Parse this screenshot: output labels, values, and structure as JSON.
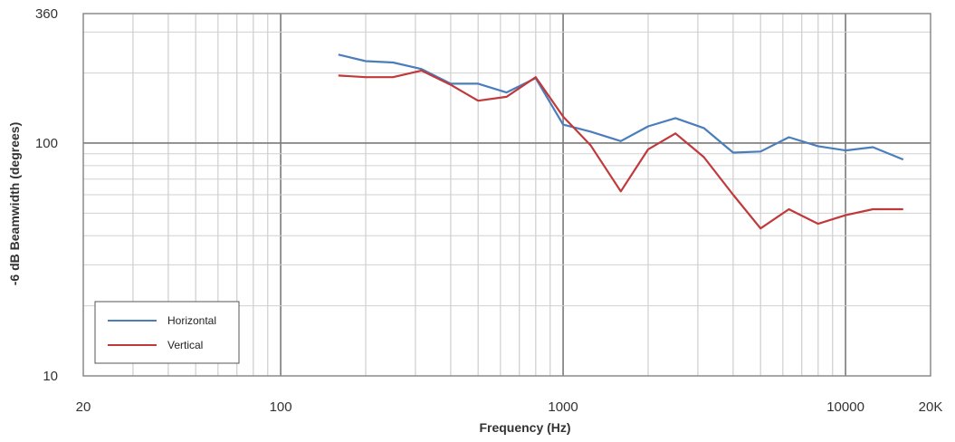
{
  "chart_data": {
    "type": "line",
    "xscale": "log",
    "yscale": "log",
    "xlabel": "Frequency (Hz)",
    "ylabel": "-6 dB Beamwidth (degrees)",
    "xlim": [
      20,
      20000
    ],
    "ylim": [
      10,
      360
    ],
    "x_tick_labels": [
      {
        "value": 20,
        "label": "20"
      },
      {
        "value": 100,
        "label": "100"
      },
      {
        "value": 1000,
        "label": "1000"
      },
      {
        "value": 10000,
        "label": "10000"
      },
      {
        "value": 20000,
        "label": "20K"
      }
    ],
    "y_tick_labels": [
      {
        "value": 10,
        "label": "10"
      },
      {
        "value": 100,
        "label": "100"
      },
      {
        "value": 360,
        "label": "360"
      }
    ],
    "grid": true,
    "legend_position": "bottom-left",
    "series": [
      {
        "name": "Horizontal",
        "color": "#4a7ebb",
        "x": [
          160,
          200,
          250,
          315,
          400,
          500,
          630,
          800,
          1000,
          1250,
          1600,
          2000,
          2500,
          3150,
          4000,
          5000,
          6300,
          8000,
          10000,
          12500,
          16000
        ],
        "y": [
          240,
          225,
          222,
          208,
          180,
          180,
          165,
          190,
          120,
          112,
          102,
          118,
          128,
          116,
          91,
          92,
          106,
          97,
          93,
          96,
          85
        ]
      },
      {
        "name": "Vertical",
        "color": "#c0393b",
        "x": [
          160,
          200,
          250,
          315,
          400,
          500,
          630,
          800,
          1000,
          1250,
          1600,
          2000,
          2500,
          3150,
          4000,
          5000,
          6300,
          8000,
          10000,
          12500,
          16000
        ],
        "y": [
          195,
          192,
          192,
          205,
          178,
          152,
          158,
          192,
          130,
          98,
          62,
          94,
          110,
          87,
          60,
          43,
          52,
          45,
          49,
          52,
          52
        ]
      }
    ]
  }
}
